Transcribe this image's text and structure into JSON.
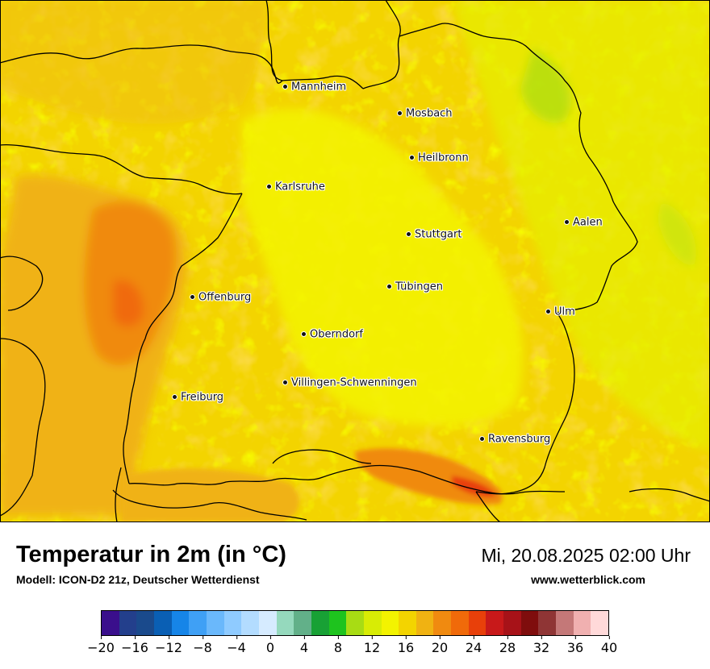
{
  "map": {
    "title": "Temperatur in 2m (in °C)",
    "model": "Modell: ICON-D2 21z, Deutscher Wetterdienst",
    "valid_time": "Mi, 20.08.2025 02:00 Uhr",
    "website": "www.wetterblick.com",
    "cities": [
      {
        "name": "Mannheim"
      },
      {
        "name": "Mosbach"
      },
      {
        "name": "Heilbronn"
      },
      {
        "name": "Karlsruhe"
      },
      {
        "name": "Stuttgart"
      },
      {
        "name": "Aalen"
      },
      {
        "name": "Offenburg"
      },
      {
        "name": "Tübingen"
      },
      {
        "name": "Ulm"
      },
      {
        "name": "Oberndorf"
      },
      {
        "name": "Villingen-Schwenningen"
      },
      {
        "name": "Freiburg"
      },
      {
        "name": "Ravensburg"
      }
    ]
  },
  "legend": {
    "unit": "°C",
    "tick_labels": [
      "−20",
      "−16",
      "−12",
      "−8",
      "−4",
      "0",
      "4",
      "8",
      "12",
      "16",
      "20",
      "24",
      "28",
      "32",
      "36",
      "40"
    ],
    "colors": [
      "#3a0f8c",
      "#233f8c",
      "#1a4a8c",
      "#0a5fb4",
      "#1685e8",
      "#3fa0f5",
      "#6ab8fb",
      "#8fcbff",
      "#b3dcff",
      "#d6ebff",
      "#95d9bd",
      "#62b089",
      "#18a135",
      "#1ec31e",
      "#a8dc14",
      "#d8ec05",
      "#f3f300",
      "#f3d400",
      "#f0b212",
      "#f08a10",
      "#f06a0a",
      "#e8400a",
      "#c8191a",
      "#a71218",
      "#7f0d0d",
      "#8f3535",
      "#c47878",
      "#f0b0b0",
      "#ffd9d9"
    ]
  }
}
